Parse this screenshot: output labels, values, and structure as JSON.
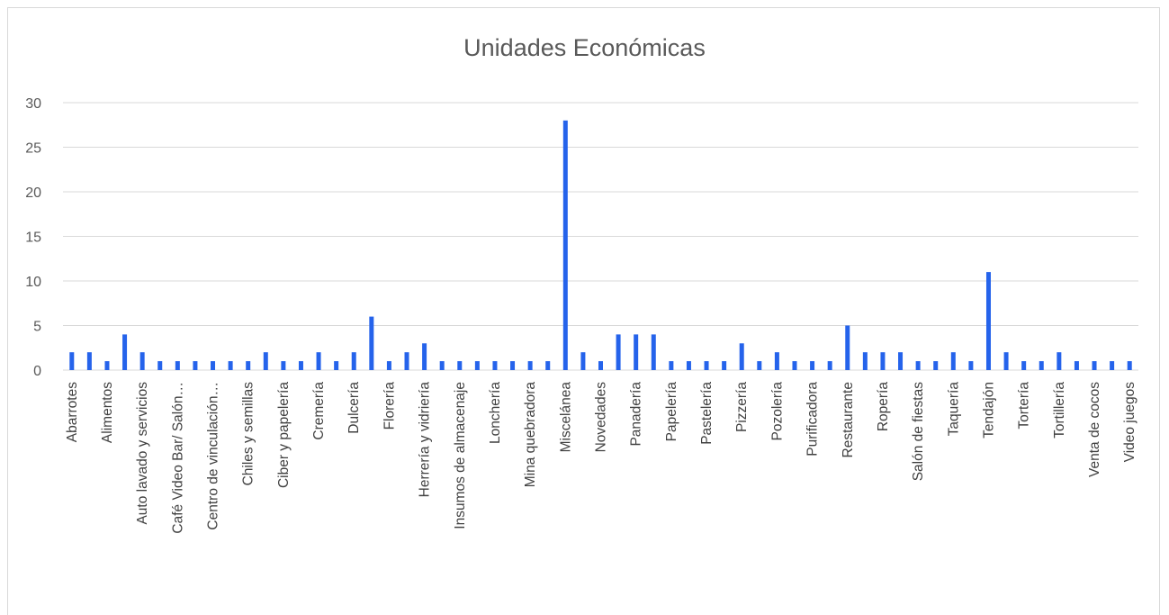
{
  "chart_data": {
    "type": "bar",
    "title": "Unidades Económicas",
    "xlabel": "",
    "ylabel": "",
    "ylim": [
      0,
      30
    ],
    "yticks": [
      0,
      5,
      10,
      15,
      20,
      25,
      30
    ],
    "grid": true,
    "legend": "none",
    "bar_color": "#2563EB",
    "grid_color": "#d9d9d9",
    "categories": [
      "Abarrotes",
      "",
      "Alimentos",
      "",
      "Auto lavado y servicios",
      "",
      "Café Video Bar/ Salón…",
      "",
      "Centro de vinculación…",
      "",
      "Chiles y semillas",
      "",
      "Ciber y papelería",
      "",
      "Cremería",
      "",
      "Dulcería",
      "",
      "Florería",
      "",
      "Herrería y vidriería",
      "",
      "Insumos de almacenaje",
      "",
      "Lonchería",
      "",
      "Mina quebradora",
      "",
      "Miscelánea",
      "",
      "Novedades",
      "",
      "Panadería",
      "",
      "Papelería",
      "",
      "Pastelería",
      "",
      "Pizzería",
      "",
      "Pozolería",
      "",
      "Purificadora",
      "",
      "Restaurante",
      "",
      "Ropería",
      "",
      "Salón de fiestas",
      "",
      "Taquería",
      "",
      "Tendajón",
      "",
      "Tortería",
      "",
      "Tortillería",
      "",
      "Venta de cocos",
      "",
      "Video juegos"
    ],
    "values": [
      2,
      2,
      1,
      4,
      2,
      1,
      1,
      1,
      1,
      1,
      1,
      2,
      1,
      1,
      2,
      1,
      2,
      6,
      1,
      2,
      3,
      1,
      1,
      1,
      1,
      1,
      1,
      1,
      28,
      2,
      1,
      4,
      4,
      4,
      1,
      1,
      1,
      1,
      3,
      1,
      2,
      1,
      1,
      1,
      5,
      2,
      2,
      2,
      1,
      1,
      2,
      1,
      11,
      2,
      1,
      1,
      2,
      1,
      1,
      1,
      1
    ]
  }
}
